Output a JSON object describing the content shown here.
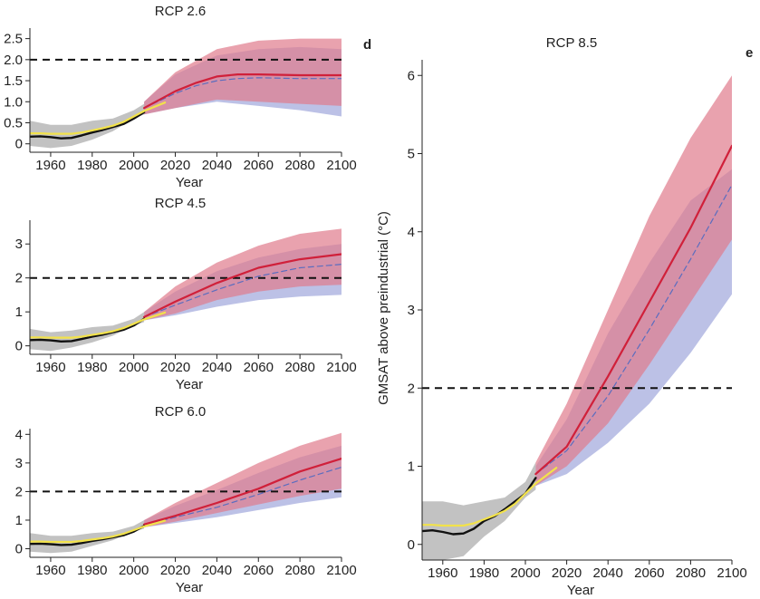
{
  "panel_labels": {
    "d": "d",
    "e": "e"
  },
  "ylabel_big": "GMSAT above preindustrial (°C)",
  "colors": {
    "obs_black": "#111111",
    "obs_yellow": "#f2e24a",
    "hist_gray": "#9a9a9a",
    "red_line": "#d0203a",
    "blue_dash": "#5b6dbf",
    "red_band": "#e07a8c",
    "blue_band": "#8f97d6",
    "threshold": "#111111"
  },
  "chart_data": [
    {
      "id": "rcp26",
      "type": "area",
      "title": "RCP 2.6",
      "xlabel": "Year",
      "ylabel": "",
      "xlim": [
        1950,
        2100
      ],
      "ylim": [
        -0.2,
        2.75
      ],
      "xticks": [
        1960,
        1980,
        2000,
        2020,
        2040,
        2060,
        2080,
        2100
      ],
      "yticks": [
        0,
        0.5,
        1.0,
        1.5,
        2.0,
        2.5
      ],
      "ytick_labels": [
        "0",
        "0.5",
        "1.0",
        "1.5",
        "2.0",
        "2.5"
      ],
      "threshold": 2.0,
      "observed_black": {
        "x": [
          1950,
          1955,
          1960,
          1965,
          1970,
          1975,
          1980,
          1985,
          1990,
          1995,
          2000,
          2005
        ],
        "y": [
          0.17,
          0.18,
          0.16,
          0.13,
          0.14,
          0.2,
          0.27,
          0.33,
          0.4,
          0.47,
          0.6,
          0.75
        ]
      },
      "observed_yellow": {
        "x": [
          1950,
          1955,
          1960,
          1965,
          1970,
          1975,
          1980,
          1985,
          1990,
          1995,
          2000,
          2005,
          2010,
          2015
        ],
        "y": [
          0.25,
          0.25,
          0.24,
          0.24,
          0.24,
          0.27,
          0.32,
          0.37,
          0.43,
          0.52,
          0.65,
          0.78,
          0.88,
          0.98
        ]
      },
      "hist_band": {
        "x": [
          1950,
          1960,
          1970,
          1980,
          1990,
          2000,
          2005
        ],
        "lower": [
          -0.05,
          -0.1,
          -0.05,
          0.1,
          0.3,
          0.6,
          0.7
        ],
        "upper": [
          0.55,
          0.45,
          0.45,
          0.55,
          0.6,
          0.8,
          0.95
        ]
      },
      "red_band": {
        "x": [
          2005,
          2020,
          2040,
          2060,
          2080,
          2100
        ],
        "lower": [
          0.7,
          0.85,
          1.05,
          1.0,
          0.95,
          0.9
        ],
        "upper": [
          1.0,
          1.7,
          2.25,
          2.45,
          2.5,
          2.5
        ]
      },
      "blue_band": {
        "x": [
          2005,
          2020,
          2040,
          2060,
          2080,
          2100
        ],
        "lower": [
          0.7,
          0.85,
          1.0,
          0.9,
          0.8,
          0.65
        ],
        "upper": [
          1.0,
          1.65,
          2.1,
          2.25,
          2.3,
          2.25
        ]
      },
      "red_line": {
        "x": [
          2005,
          2020,
          2030,
          2040,
          2050,
          2060,
          2080,
          2100
        ],
        "y": [
          0.85,
          1.25,
          1.45,
          1.6,
          1.65,
          1.65,
          1.63,
          1.63
        ]
      },
      "blue_dash": {
        "x": [
          2005,
          2020,
          2030,
          2040,
          2050,
          2060,
          2080,
          2100
        ],
        "y": [
          0.85,
          1.2,
          1.38,
          1.5,
          1.55,
          1.57,
          1.55,
          1.55
        ]
      }
    },
    {
      "id": "rcp45",
      "type": "area",
      "title": "RCP 4.5",
      "xlabel": "Year",
      "ylabel": "",
      "xlim": [
        1950,
        2100
      ],
      "ylim": [
        -0.25,
        3.7
      ],
      "xticks": [
        1960,
        1980,
        2000,
        2020,
        2040,
        2060,
        2080,
        2100
      ],
      "yticks": [
        0,
        1,
        2,
        3
      ],
      "ytick_labels": [
        "0",
        "1",
        "2",
        "3"
      ],
      "threshold": 2.0,
      "observed_black": {
        "x": [
          1950,
          1955,
          1960,
          1965,
          1970,
          1975,
          1980,
          1985,
          1990,
          1995,
          2000,
          2005
        ],
        "y": [
          0.17,
          0.18,
          0.16,
          0.13,
          0.14,
          0.2,
          0.27,
          0.33,
          0.4,
          0.47,
          0.6,
          0.8
        ]
      },
      "observed_yellow": {
        "x": [
          1950,
          1955,
          1960,
          1965,
          1970,
          1975,
          1980,
          1985,
          1990,
          1995,
          2000,
          2005,
          2010,
          2015
        ],
        "y": [
          0.25,
          0.25,
          0.24,
          0.24,
          0.24,
          0.27,
          0.32,
          0.37,
          0.43,
          0.52,
          0.65,
          0.78,
          0.88,
          0.98
        ]
      },
      "hist_band": {
        "x": [
          1950,
          1960,
          1970,
          1980,
          1990,
          2000,
          2005
        ],
        "lower": [
          -0.1,
          -0.15,
          -0.05,
          0.1,
          0.3,
          0.6,
          0.7
        ],
        "upper": [
          0.5,
          0.4,
          0.45,
          0.55,
          0.6,
          0.8,
          1.0
        ]
      },
      "red_band": {
        "x": [
          2005,
          2020,
          2040,
          2060,
          2080,
          2100
        ],
        "lower": [
          0.75,
          0.95,
          1.35,
          1.6,
          1.75,
          1.8
        ],
        "upper": [
          1.0,
          1.75,
          2.45,
          2.95,
          3.3,
          3.45
        ]
      },
      "blue_band": {
        "x": [
          2005,
          2020,
          2040,
          2060,
          2080,
          2100
        ],
        "lower": [
          0.75,
          0.9,
          1.15,
          1.35,
          1.45,
          1.5
        ],
        "upper": [
          1.0,
          1.6,
          2.2,
          2.6,
          2.85,
          3.0
        ]
      },
      "red_line": {
        "x": [
          2005,
          2020,
          2040,
          2060,
          2080,
          2100
        ],
        "y": [
          0.85,
          1.3,
          1.85,
          2.3,
          2.55,
          2.7
        ]
      },
      "blue_dash": {
        "x": [
          2005,
          2020,
          2040,
          2060,
          2080,
          2100
        ],
        "y": [
          0.85,
          1.2,
          1.65,
          2.05,
          2.3,
          2.4
        ]
      }
    },
    {
      "id": "rcp60",
      "type": "area",
      "title": "RCP 6.0",
      "xlabel": "Year",
      "ylabel": "",
      "xlim": [
        1950,
        2100
      ],
      "ylim": [
        -0.3,
        4.2
      ],
      "xticks": [
        1960,
        1980,
        2000,
        2020,
        2040,
        2060,
        2080,
        2100
      ],
      "yticks": [
        0,
        1,
        2,
        3,
        4
      ],
      "ytick_labels": [
        "0",
        "1",
        "2",
        "3",
        "4"
      ],
      "threshold": 2.0,
      "observed_black": {
        "x": [
          1950,
          1955,
          1960,
          1965,
          1970,
          1975,
          1980,
          1985,
          1990,
          1995,
          2000,
          2005
        ],
        "y": [
          0.17,
          0.18,
          0.16,
          0.13,
          0.14,
          0.2,
          0.27,
          0.33,
          0.4,
          0.47,
          0.6,
          0.8
        ]
      },
      "observed_yellow": {
        "x": [
          1950,
          1955,
          1960,
          1965,
          1970,
          1975,
          1980,
          1985,
          1990,
          1995,
          2000,
          2005,
          2010,
          2015
        ],
        "y": [
          0.25,
          0.25,
          0.24,
          0.24,
          0.24,
          0.27,
          0.32,
          0.37,
          0.43,
          0.52,
          0.65,
          0.78,
          0.88,
          0.98
        ]
      },
      "hist_band": {
        "x": [
          1950,
          1960,
          1970,
          1980,
          1990,
          2000,
          2005
        ],
        "lower": [
          -0.1,
          -0.15,
          -0.1,
          0.1,
          0.3,
          0.6,
          0.7
        ],
        "upper": [
          0.55,
          0.45,
          0.45,
          0.55,
          0.6,
          0.8,
          1.0
        ]
      },
      "red_band": {
        "x": [
          2005,
          2020,
          2040,
          2060,
          2080,
          2100
        ],
        "lower": [
          0.75,
          0.95,
          1.25,
          1.55,
          1.85,
          2.1
        ],
        "upper": [
          1.0,
          1.6,
          2.3,
          3.0,
          3.6,
          4.05
        ]
      },
      "blue_band": {
        "x": [
          2005,
          2020,
          2040,
          2060,
          2080,
          2100
        ],
        "lower": [
          0.75,
          0.9,
          1.1,
          1.35,
          1.6,
          1.8
        ],
        "upper": [
          1.0,
          1.5,
          2.05,
          2.65,
          3.2,
          3.6
        ]
      },
      "red_line": {
        "x": [
          2005,
          2020,
          2040,
          2060,
          2080,
          2100
        ],
        "y": [
          0.85,
          1.15,
          1.6,
          2.1,
          2.7,
          3.15
        ]
      },
      "blue_dash": {
        "x": [
          2005,
          2020,
          2040,
          2060,
          2080,
          2100
        ],
        "y": [
          0.85,
          1.1,
          1.45,
          1.9,
          2.4,
          2.85
        ]
      }
    },
    {
      "id": "rcp85",
      "type": "area",
      "title": "RCP 8.5",
      "xlabel": "Year",
      "ylabel": "GMSAT above preindustrial (°C)",
      "xlim": [
        1950,
        2100
      ],
      "ylim": [
        -0.2,
        6.2
      ],
      "xticks": [
        1960,
        1980,
        2000,
        2020,
        2040,
        2060,
        2080,
        2100
      ],
      "yticks": [
        0,
        1,
        2,
        3,
        4,
        5,
        6
      ],
      "ytick_labels": [
        "0",
        "1",
        "2",
        "3",
        "4",
        "5",
        "6"
      ],
      "threshold": 2.0,
      "observed_black": {
        "x": [
          1950,
          1955,
          1960,
          1965,
          1970,
          1975,
          1980,
          1985,
          1990,
          1995,
          2000,
          2005
        ],
        "y": [
          0.17,
          0.18,
          0.16,
          0.13,
          0.14,
          0.2,
          0.3,
          0.36,
          0.45,
          0.55,
          0.65,
          0.85
        ]
      },
      "observed_yellow": {
        "x": [
          1950,
          1955,
          1960,
          1965,
          1970,
          1975,
          1980,
          1985,
          1990,
          1995,
          2000,
          2005,
          2010,
          2015
        ],
        "y": [
          0.25,
          0.25,
          0.24,
          0.24,
          0.24,
          0.27,
          0.32,
          0.37,
          0.43,
          0.52,
          0.65,
          0.78,
          0.88,
          0.98
        ]
      },
      "hist_band": {
        "x": [
          1950,
          1960,
          1970,
          1980,
          1990,
          2000,
          2005
        ],
        "lower": [
          -0.2,
          -0.2,
          -0.15,
          0.1,
          0.3,
          0.6,
          0.7
        ],
        "upper": [
          0.55,
          0.55,
          0.5,
          0.55,
          0.6,
          0.8,
          1.05
        ]
      },
      "red_band": {
        "x": [
          2005,
          2020,
          2040,
          2060,
          2080,
          2100
        ],
        "lower": [
          0.75,
          1.0,
          1.55,
          2.3,
          3.1,
          3.9
        ],
        "upper": [
          1.05,
          1.8,
          3.0,
          4.2,
          5.2,
          6.0
        ]
      },
      "blue_band": {
        "x": [
          2005,
          2020,
          2040,
          2060,
          2080,
          2100
        ],
        "lower": [
          0.75,
          0.9,
          1.3,
          1.8,
          2.45,
          3.2
        ],
        "upper": [
          1.0,
          1.6,
          2.7,
          3.6,
          4.4,
          4.8
        ]
      },
      "red_line": {
        "x": [
          2005,
          2020,
          2030,
          2040,
          2060,
          2080,
          2100
        ],
        "y": [
          0.9,
          1.25,
          1.7,
          2.15,
          3.1,
          4.05,
          5.1
        ]
      },
      "blue_dash": {
        "x": [
          2005,
          2020,
          2030,
          2040,
          2060,
          2080,
          2100
        ],
        "y": [
          0.9,
          1.2,
          1.55,
          1.9,
          2.75,
          3.65,
          4.6
        ]
      }
    }
  ]
}
